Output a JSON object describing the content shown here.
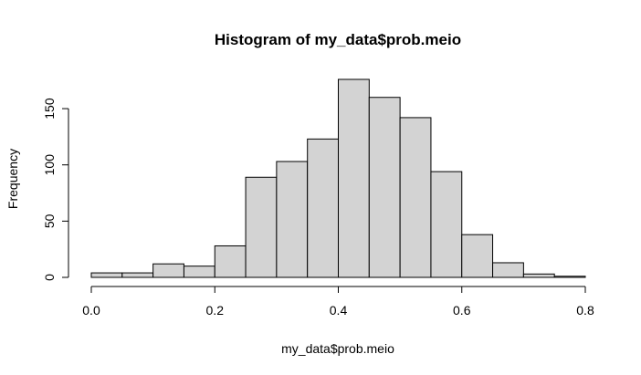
{
  "chart_data": {
    "type": "bar",
    "title": "Histogram of my_data$prob.meio",
    "xlabel": "my_data$prob.meio",
    "ylabel": "Frequency",
    "bin_width": 0.05,
    "bins": [
      {
        "start": 0.0,
        "end": 0.05,
        "count": 4
      },
      {
        "start": 0.05,
        "end": 0.1,
        "count": 4
      },
      {
        "start": 0.1,
        "end": 0.15,
        "count": 12
      },
      {
        "start": 0.15,
        "end": 0.2,
        "count": 10
      },
      {
        "start": 0.2,
        "end": 0.25,
        "count": 28
      },
      {
        "start": 0.25,
        "end": 0.3,
        "count": 89
      },
      {
        "start": 0.3,
        "end": 0.35,
        "count": 103
      },
      {
        "start": 0.35,
        "end": 0.4,
        "count": 123
      },
      {
        "start": 0.4,
        "end": 0.45,
        "count": 176
      },
      {
        "start": 0.45,
        "end": 0.5,
        "count": 160
      },
      {
        "start": 0.5,
        "end": 0.55,
        "count": 142
      },
      {
        "start": 0.55,
        "end": 0.6,
        "count": 94
      },
      {
        "start": 0.6,
        "end": 0.65,
        "count": 38
      },
      {
        "start": 0.65,
        "end": 0.7,
        "count": 13
      },
      {
        "start": 0.7,
        "end": 0.75,
        "count": 3
      },
      {
        "start": 0.75,
        "end": 0.8,
        "count": 1
      }
    ],
    "xlim": [
      0,
      0.8
    ],
    "ylim": [
      0,
      176
    ],
    "x_ticks": [
      "0.0",
      "0.2",
      "0.4",
      "0.6",
      "0.8"
    ],
    "y_ticks": [
      "0",
      "50",
      "100",
      "150"
    ],
    "grid": false,
    "colors": {
      "bar_fill": "#d3d3d3",
      "bar_stroke": "#000000"
    }
  }
}
